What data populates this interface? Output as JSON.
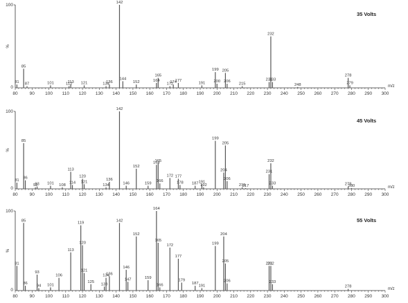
{
  "chart_data": [
    {
      "type": "bar",
      "title": "35 Volts",
      "xlabel": "m/z",
      "ylabel": "%",
      "xlim": [
        80,
        300
      ],
      "ylim": [
        0,
        100
      ],
      "y_ticks": [
        "100",
        "0"
      ],
      "x_ticks": [
        "80",
        "90",
        "100",
        "110",
        "120",
        "130",
        "140",
        "150",
        "160",
        "170",
        "180",
        "190",
        "200",
        "210",
        "220",
        "230",
        "240",
        "250",
        "260",
        "270",
        "280",
        "290",
        "300"
      ],
      "peaks": [
        {
          "mz": 81,
          "intensity": 4,
          "label": "81"
        },
        {
          "mz": 85,
          "intensity": 23,
          "label": "85"
        },
        {
          "mz": 87,
          "intensity": 2,
          "label": "87"
        },
        {
          "mz": 101,
          "intensity": 3,
          "label": "101"
        },
        {
          "mz": 112,
          "intensity": 2,
          "label": "112"
        },
        {
          "mz": 113,
          "intensity": 4,
          "label": "113"
        },
        {
          "mz": 121,
          "intensity": 3,
          "label": "121"
        },
        {
          "mz": 134,
          "intensity": 2,
          "label": "134"
        },
        {
          "mz": 136,
          "intensity": 4,
          "label": "136"
        },
        {
          "mz": 142,
          "intensity": 100,
          "label": "142"
        },
        {
          "mz": 144,
          "intensity": 8,
          "label": "144"
        },
        {
          "mz": 152,
          "intensity": 4,
          "label": "152"
        },
        {
          "mz": 164,
          "intensity": 6,
          "label": "164"
        },
        {
          "mz": 165,
          "intensity": 12,
          "label": "165"
        },
        {
          "mz": 172,
          "intensity": 2,
          "label": "172"
        },
        {
          "mz": 174,
          "intensity": 4,
          "label": "174"
        },
        {
          "mz": 177,
          "intensity": 6,
          "label": "177"
        },
        {
          "mz": 191,
          "intensity": 3,
          "label": "191"
        },
        {
          "mz": 199,
          "intensity": 19,
          "label": "199"
        },
        {
          "mz": 200,
          "intensity": 5,
          "label": "200"
        },
        {
          "mz": 205,
          "intensity": 18,
          "label": "205"
        },
        {
          "mz": 206,
          "intensity": 5,
          "label": "206"
        },
        {
          "mz": 215,
          "intensity": 2,
          "label": "215"
        },
        {
          "mz": 231,
          "intensity": 7,
          "label": "231"
        },
        {
          "mz": 232,
          "intensity": 62,
          "label": "232"
        },
        {
          "mz": 233,
          "intensity": 7,
          "label": "233"
        },
        {
          "mz": 248,
          "intensity": 1,
          "label": "248"
        },
        {
          "mz": 278,
          "intensity": 12,
          "label": "278"
        },
        {
          "mz": 279,
          "intensity": 3,
          "label": "279"
        }
      ]
    },
    {
      "type": "bar",
      "title": "45 Volts",
      "xlabel": "m/z",
      "ylabel": "%",
      "xlim": [
        80,
        300
      ],
      "ylim": [
        0,
        100
      ],
      "y_ticks": [
        "100",
        "0"
      ],
      "x_ticks": [
        "80",
        "90",
        "100",
        "110",
        "120",
        "130",
        "140",
        "150",
        "160",
        "170",
        "180",
        "190",
        "200",
        "210",
        "220",
        "230",
        "240",
        "250",
        "260",
        "270",
        "280",
        "290",
        "300"
      ],
      "peaks": [
        {
          "mz": 81,
          "intensity": 8,
          "label": "81"
        },
        {
          "mz": 85,
          "intensity": 59,
          "label": "85"
        },
        {
          "mz": 86,
          "intensity": 11,
          "label": "86"
        },
        {
          "mz": 92,
          "intensity": 2,
          "label": "92"
        },
        {
          "mz": 93,
          "intensity": 3,
          "label": "93"
        },
        {
          "mz": 101,
          "intensity": 4,
          "label": "101"
        },
        {
          "mz": 108,
          "intensity": 2,
          "label": "108"
        },
        {
          "mz": 113,
          "intensity": 22,
          "label": "113"
        },
        {
          "mz": 114,
          "intensity": 5,
          "label": "114"
        },
        {
          "mz": 120,
          "intensity": 13,
          "label": "120"
        },
        {
          "mz": 121,
          "intensity": 6,
          "label": "121"
        },
        {
          "mz": 134,
          "intensity": 2,
          "label": "134"
        },
        {
          "mz": 136,
          "intensity": 9,
          "label": "136"
        },
        {
          "mz": 142,
          "intensity": 100,
          "label": "142"
        },
        {
          "mz": 146,
          "intensity": 4,
          "label": "146"
        },
        {
          "mz": 152,
          "intensity": 26,
          "label": "152"
        },
        {
          "mz": 159,
          "intensity": 4,
          "label": "159"
        },
        {
          "mz": 164,
          "intensity": 31,
          "label": "164"
        },
        {
          "mz": 165,
          "intensity": 33,
          "label": "165"
        },
        {
          "mz": 166,
          "intensity": 7,
          "label": "166"
        },
        {
          "mz": 172,
          "intensity": 14,
          "label": "172"
        },
        {
          "mz": 177,
          "intensity": 13,
          "label": "177"
        },
        {
          "mz": 178,
          "intensity": 5,
          "label": "178"
        },
        {
          "mz": 187,
          "intensity": 4,
          "label": "187"
        },
        {
          "mz": 191,
          "intensity": 6,
          "label": "191"
        },
        {
          "mz": 192,
          "intensity": 2,
          "label": "192"
        },
        {
          "mz": 199,
          "intensity": 62,
          "label": "199"
        },
        {
          "mz": 204,
          "intensity": 21,
          "label": "204"
        },
        {
          "mz": 205,
          "intensity": 56,
          "label": "205"
        },
        {
          "mz": 206,
          "intensity": 10,
          "label": "206"
        },
        {
          "mz": 215,
          "intensity": 2,
          "label": "215"
        },
        {
          "mz": 217,
          "intensity": 1,
          "label": "217"
        },
        {
          "mz": 231,
          "intensity": 19,
          "label": "231"
        },
        {
          "mz": 232,
          "intensity": 33,
          "label": "232"
        },
        {
          "mz": 233,
          "intensity": 4,
          "label": "233"
        },
        {
          "mz": 278,
          "intensity": 3,
          "label": "278"
        },
        {
          "mz": 280,
          "intensity": 1,
          "label": "280"
        }
      ]
    },
    {
      "type": "bar",
      "title": "55 Volts",
      "xlabel": "m/z",
      "ylabel": "%",
      "xlim": [
        80,
        300
      ],
      "ylim": [
        0,
        100
      ],
      "y_ticks": [
        "100",
        "0"
      ],
      "x_ticks": [
        "80",
        "90",
        "100",
        "110",
        "120",
        "130",
        "140",
        "150",
        "160",
        "170",
        "180",
        "190",
        "200",
        "210",
        "220",
        "230",
        "240",
        "250",
        "260",
        "270",
        "280",
        "290",
        "300"
      ],
      "peaks": [
        {
          "mz": 81,
          "intensity": 31,
          "label": "81"
        },
        {
          "mz": 85,
          "intensity": 85,
          "label": "85"
        },
        {
          "mz": 86,
          "intensity": 6,
          "label": "86"
        },
        {
          "mz": 93,
          "intensity": 20,
          "label": "93"
        },
        {
          "mz": 94,
          "intensity": 3,
          "label": "94"
        },
        {
          "mz": 101,
          "intensity": 4,
          "label": "101"
        },
        {
          "mz": 106,
          "intensity": 16,
          "label": "106"
        },
        {
          "mz": 113,
          "intensity": 48,
          "label": "113"
        },
        {
          "mz": 119,
          "intensity": 82,
          "label": "119"
        },
        {
          "mz": 120,
          "intensity": 57,
          "label": "120"
        },
        {
          "mz": 121,
          "intensity": 22,
          "label": "121"
        },
        {
          "mz": 125,
          "intensity": 8,
          "label": "125"
        },
        {
          "mz": 133,
          "intensity": 5,
          "label": "133"
        },
        {
          "mz": 134,
          "intensity": 16,
          "label": "134"
        },
        {
          "mz": 136,
          "intensity": 18,
          "label": "136"
        },
        {
          "mz": 142,
          "intensity": 85,
          "label": "142"
        },
        {
          "mz": 146,
          "intensity": 26,
          "label": "146"
        },
        {
          "mz": 147,
          "intensity": 11,
          "label": "147"
        },
        {
          "mz": 152,
          "intensity": 68,
          "label": "152"
        },
        {
          "mz": 159,
          "intensity": 13,
          "label": "159"
        },
        {
          "mz": 164,
          "intensity": 100,
          "label": "164"
        },
        {
          "mz": 165,
          "intensity": 60,
          "label": "165"
        },
        {
          "mz": 166,
          "intensity": 4,
          "label": "166"
        },
        {
          "mz": 172,
          "intensity": 54,
          "label": "172"
        },
        {
          "mz": 177,
          "intensity": 40,
          "label": "177"
        },
        {
          "mz": 179,
          "intensity": 10,
          "label": "179"
        },
        {
          "mz": 187,
          "intensity": 6,
          "label": "187"
        },
        {
          "mz": 191,
          "intensity": 3,
          "label": "191"
        },
        {
          "mz": 199,
          "intensity": 56,
          "label": "199"
        },
        {
          "mz": 204,
          "intensity": 68,
          "label": "204"
        },
        {
          "mz": 205,
          "intensity": 34,
          "label": "205"
        },
        {
          "mz": 206,
          "intensity": 9,
          "label": "206"
        },
        {
          "mz": 231,
          "intensity": 31,
          "label": "231"
        },
        {
          "mz": 232,
          "intensity": 31,
          "label": "232"
        },
        {
          "mz": 233,
          "intensity": 8,
          "label": "233"
        },
        {
          "mz": 278,
          "intensity": 2,
          "label": "278"
        }
      ]
    }
  ],
  "colors": {
    "peak": "#555555",
    "axis": "#333333",
    "text": "#333333"
  }
}
